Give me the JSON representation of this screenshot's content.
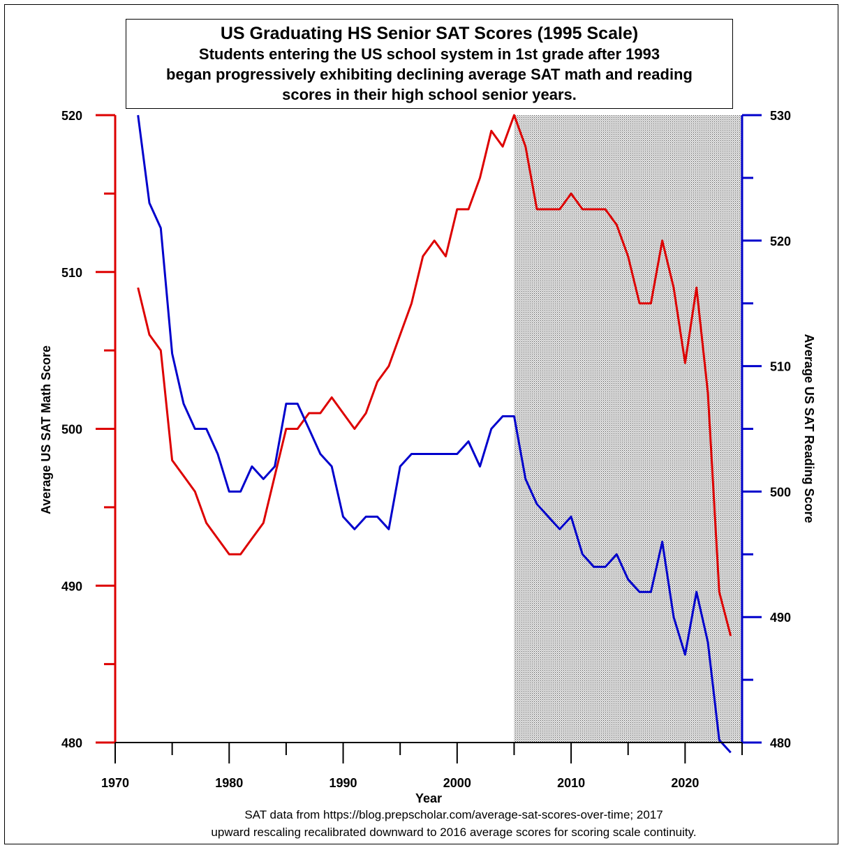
{
  "title": "US Graduating HS Senior SAT Scores (1995 Scale)",
  "subtitle_lines": [
    "Students entering the US school system in 1st grade after 1993",
    "began progressively exhibiting declining average SAT math and reading",
    "scores in their high school senior years."
  ],
  "footnote_lines": [
    "SAT data from https://blog.prepscholar.com/average-sat-scores-over-time; 2017",
    "upward rescaling recalibrated downward to 2016 average scores for scoring scale continuity."
  ],
  "chart_data": {
    "type": "line",
    "title": "US Graduating HS Senior SAT Scores (1995 Scale)",
    "xlabel": "Year",
    "xlim": [
      1970,
      2025
    ],
    "x_ticks": [
      1970,
      1980,
      1990,
      2000,
      2010,
      2020
    ],
    "shaded_region": [
      2005,
      2025
    ],
    "grid": false,
    "y_left": {
      "label": "Average US SAT Math Score",
      "lim": [
        480,
        520
      ],
      "ticks": [
        480,
        490,
        500,
        510,
        520
      ],
      "color": "#dd0000"
    },
    "y_right": {
      "label": "Average US SAT Reading Score",
      "lim": [
        480,
        530
      ],
      "ticks": [
        480,
        490,
        500,
        510,
        520,
        530
      ],
      "color": "#0000cc"
    },
    "x": [
      1972,
      1973,
      1974,
      1975,
      1976,
      1977,
      1978,
      1979,
      1980,
      1981,
      1982,
      1983,
      1984,
      1985,
      1986,
      1987,
      1988,
      1989,
      1990,
      1991,
      1992,
      1993,
      1994,
      1995,
      1996,
      1997,
      1998,
      1999,
      2000,
      2001,
      2002,
      2003,
      2004,
      2005,
      2006,
      2007,
      2008,
      2009,
      2010,
      2011,
      2012,
      2013,
      2014,
      2015,
      2016,
      2017,
      2018,
      2019,
      2020,
      2021,
      2022,
      2023,
      2024
    ],
    "series": [
      {
        "name": "Average US SAT Math Score",
        "axis": "left",
        "color": "#dd0000",
        "values": [
          509,
          506,
          505,
          498,
          497,
          496,
          494,
          493,
          492,
          492,
          493,
          494,
          497,
          500,
          500,
          501,
          501,
          502,
          501,
          500,
          501,
          503,
          504,
          506,
          508,
          511,
          512,
          511,
          514,
          514,
          516,
          519,
          518,
          520,
          518,
          514,
          514,
          514,
          515,
          514,
          514,
          514,
          513,
          511,
          508,
          508,
          512,
          509,
          504.2,
          509,
          502.3,
          489.6,
          486.8
        ]
      },
      {
        "name": "Average US SAT Reading Score",
        "axis": "right",
        "color": "#0000cc",
        "values": [
          530,
          523,
          521,
          511,
          507,
          505,
          505,
          503,
          500,
          500,
          502,
          501,
          502,
          507,
          507,
          505,
          503,
          502,
          498,
          497,
          498,
          498,
          497,
          502,
          503,
          503,
          503,
          503,
          503,
          504,
          502,
          505,
          506,
          506,
          501,
          499,
          498,
          497,
          498,
          495,
          494,
          494,
          495,
          493,
          492,
          492,
          496,
          490,
          487,
          492,
          488,
          480.2,
          479.2
        ]
      }
    ]
  }
}
